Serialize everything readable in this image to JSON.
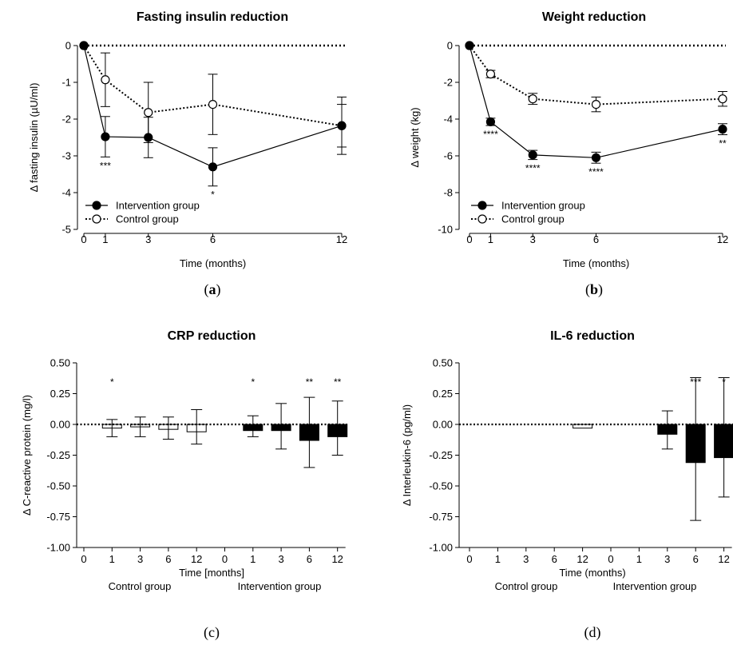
{
  "chart_data": [
    {
      "type": "line",
      "panel_label": "a",
      "title": "Fasting insulin reduction",
      "xlabel": "Time (months)",
      "ylabel": "Δ fasting insulin (µU/ml)",
      "xlim": [
        0,
        12
      ],
      "ylim": [
        -5,
        0
      ],
      "x_ticks": [
        0,
        1,
        3,
        6,
        12
      ],
      "y_ticks": [
        0,
        -1,
        -2,
        -3,
        -4,
        -5
      ],
      "legend_position": "bottom-left",
      "series": [
        {
          "name": "Intervention group",
          "style": "solid-filled",
          "x": [
            0,
            1,
            3,
            6,
            12
          ],
          "y": [
            0,
            -2.48,
            -2.5,
            -3.3,
            -2.18
          ],
          "err": [
            0,
            0.55,
            0.55,
            0.52,
            0.58
          ],
          "stars": [
            "",
            "***",
            "",
            "*",
            ""
          ]
        },
        {
          "name": "Control group",
          "style": "dotted-open",
          "x": [
            0,
            1,
            3,
            6,
            12
          ],
          "y": [
            0,
            -0.93,
            -1.82,
            -1.6,
            -2.18
          ],
          "err": [
            0,
            0.73,
            0.82,
            0.82,
            0.78
          ],
          "stars": [
            "",
            "",
            "",
            "",
            ""
          ]
        }
      ]
    },
    {
      "type": "line",
      "panel_label": "b",
      "title": "Weight reduction",
      "xlabel": "Time (months)",
      "ylabel": "Δ weight (kg)",
      "xlim": [
        0,
        12
      ],
      "ylim": [
        -10,
        0
      ],
      "x_ticks": [
        0,
        1,
        3,
        6,
        12
      ],
      "y_ticks": [
        0,
        -2,
        -4,
        -6,
        -8,
        -10
      ],
      "legend_position": "bottom-left",
      "series": [
        {
          "name": "Intervention group",
          "style": "solid-filled",
          "x": [
            0,
            1,
            3,
            6,
            12
          ],
          "y": [
            0,
            -4.15,
            -5.95,
            -6.1,
            -4.55
          ],
          "err": [
            0,
            0.2,
            0.25,
            0.3,
            0.3
          ],
          "stars": [
            "",
            "****",
            "****",
            "****",
            "**"
          ]
        },
        {
          "name": "Control group",
          "style": "dotted-open",
          "x": [
            0,
            1,
            3,
            6,
            12
          ],
          "y": [
            0,
            -1.55,
            -2.9,
            -3.2,
            -2.9
          ],
          "err": [
            0,
            0.2,
            0.3,
            0.4,
            0.4
          ],
          "stars": [
            "",
            "",
            "",
            "",
            ""
          ]
        }
      ]
    },
    {
      "type": "bar",
      "panel_label": "c",
      "title": "CRP reduction",
      "xlabel": "Time [months]",
      "ylabel": "Δ C-reactive protein (mg/l)",
      "ylim": [
        -1,
        0.5
      ],
      "y_ticks": [
        "0.50",
        "0.25",
        "0.00",
        "-0.25",
        "-0.50",
        "-0.75",
        "-1.00"
      ],
      "y_tick_values": [
        0.5,
        0.25,
        0,
        -0.25,
        -0.5,
        -0.75,
        -1
      ],
      "categories": [
        "0",
        "1",
        "3",
        "6",
        "12",
        "0",
        "1",
        "3",
        "6",
        "12"
      ],
      "group_labels": [
        "Control group",
        "Intervention group"
      ],
      "values": [
        0,
        -0.03,
        -0.02,
        -0.04,
        -0.06,
        0,
        -0.05,
        -0.05,
        -0.13,
        -0.1
      ],
      "err_up": [
        0,
        0.07,
        0.08,
        0.1,
        0.18,
        0,
        0.12,
        0.22,
        0.35,
        0.29
      ],
      "err_down": [
        0,
        0.07,
        0.08,
        0.08,
        0.1,
        0,
        0.05,
        0.15,
        0.22,
        0.15
      ],
      "bar_fill": [
        "white",
        "white",
        "white",
        "white",
        "white",
        "black",
        "black",
        "black",
        "black",
        "black"
      ],
      "stars": [
        "",
        "*",
        "",
        "",
        "",
        "",
        "*",
        "",
        "**",
        "**"
      ]
    },
    {
      "type": "bar",
      "panel_label": "d",
      "title": "IL-6 reduction",
      "xlabel": "Time (months)",
      "ylabel": "Δ Interleukin-6 (pg/ml)",
      "ylim": [
        -1,
        0.5
      ],
      "y_ticks": [
        "0.50",
        "0.25",
        "0.00",
        "-0.25",
        "-0.50",
        "-0.75",
        "-1.00"
      ],
      "y_tick_values": [
        0.5,
        0.25,
        0,
        -0.25,
        -0.5,
        -0.75,
        -1
      ],
      "categories": [
        "0",
        "1",
        "3",
        "6",
        "12",
        "0",
        "1",
        "3",
        "6",
        "12"
      ],
      "group_labels": [
        "Control group",
        "Intervention group"
      ],
      "values": [
        0,
        0,
        0,
        0,
        -0.03,
        0,
        0,
        -0.08,
        -0.31,
        -0.27
      ],
      "err_up": [
        0,
        0,
        0,
        0,
        0,
        0,
        0,
        0.19,
        0.69,
        0.65
      ],
      "err_down": [
        0,
        0,
        0,
        0,
        0,
        0,
        0,
        0.12,
        0.47,
        0.32
      ],
      "bar_fill": [
        "white",
        "white",
        "white",
        "white",
        "white",
        "black",
        "black",
        "black",
        "black",
        "black"
      ],
      "stars": [
        "",
        "",
        "",
        "",
        "",
        "",
        "",
        "",
        "***",
        "*"
      ]
    }
  ]
}
